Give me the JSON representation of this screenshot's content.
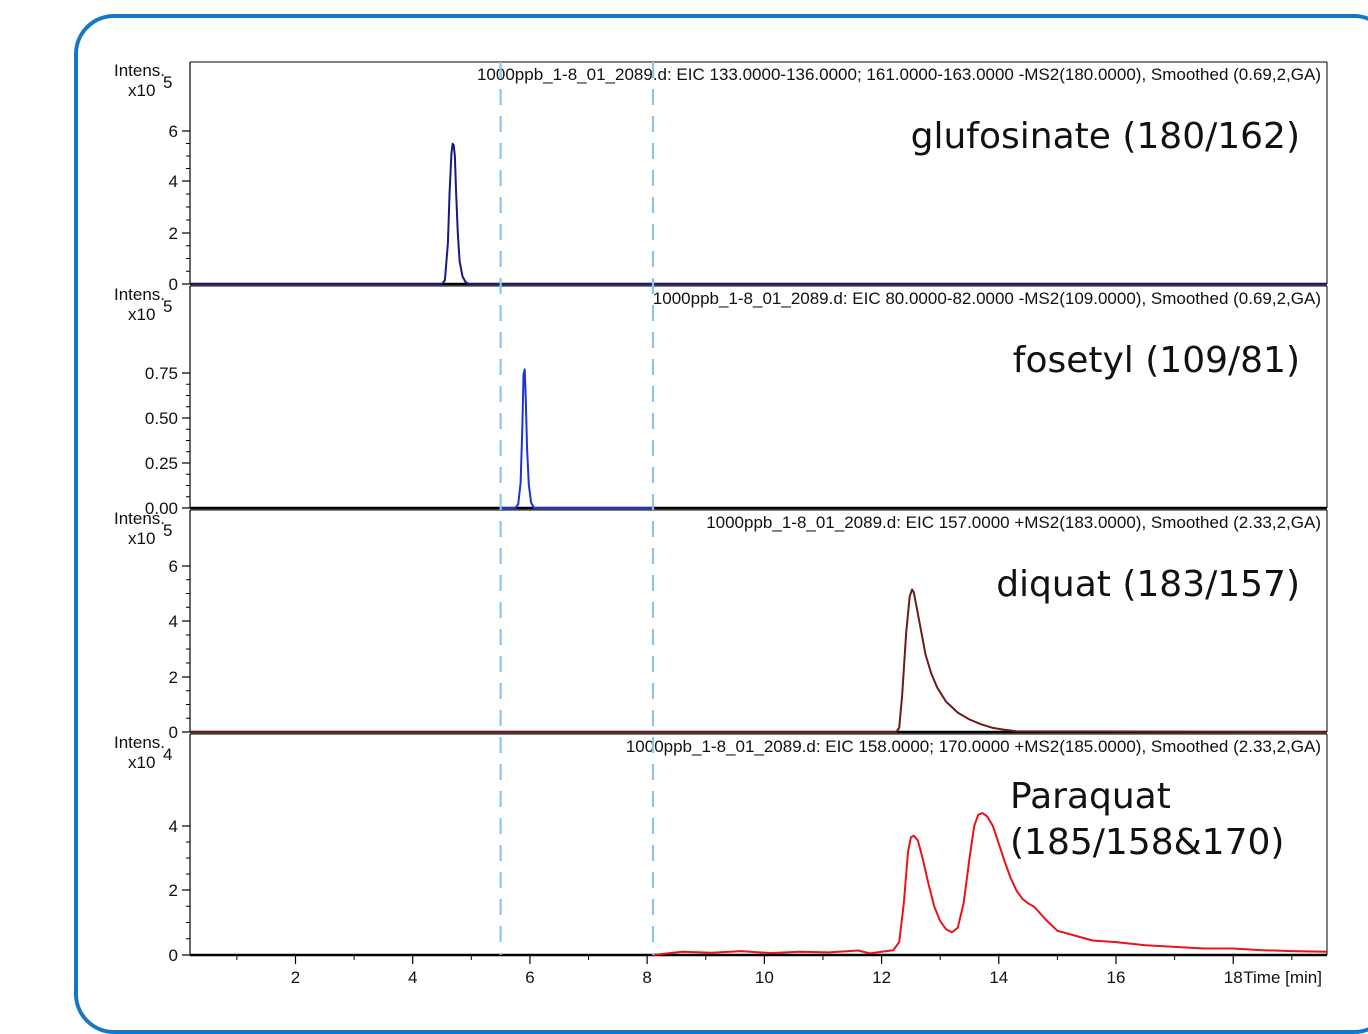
{
  "colors": {
    "frame": "#1677c2",
    "marker": "#8fc3ef",
    "axis": "#000000"
  },
  "x_axis_label": "Time [min]",
  "chart_data": [
    {
      "type": "line",
      "panel": 1,
      "header": "1000ppb_1-8_01_2089.d: EIC 133.0000-136.0000; 161.0000-163.0000 -MS2(180.0000), Smoothed (0.69,2,GA)",
      "compound_label": "glufosinate (180/162)",
      "y_unit_label": "Intens.",
      "y_scale_label": "x10",
      "y_scale_exp": "5",
      "y_ticks": [
        "0",
        "2",
        "4",
        "6"
      ],
      "ylim": [
        0,
        7
      ],
      "xlim": [
        0.2,
        19.6
      ],
      "color": "#1a1a7a",
      "series": [
        {
          "x": [
            0.2,
            4.5,
            4.55,
            4.6,
            4.63,
            4.66,
            4.68,
            4.7,
            4.72,
            4.74,
            4.77,
            4.8,
            4.85,
            4.9,
            4.95,
            19.6
          ],
          "y": [
            0,
            0,
            0.15,
            1.6,
            3.6,
            5.1,
            5.5,
            5.45,
            5.0,
            3.6,
            2.0,
            0.9,
            0.3,
            0.08,
            0,
            0
          ]
        }
      ]
    },
    {
      "type": "line",
      "panel": 2,
      "header": "1000ppb_1-8_01_2089.d: EIC 80.0000-82.0000 -MS2(109.0000), Smoothed (0.69,2,GA)",
      "compound_label": "fosetyl (109/81)",
      "y_unit_label": "Intens.",
      "y_scale_label": "x10",
      "y_scale_exp": "5",
      "y_ticks": [
        "0.00",
        "0.25",
        "0.50",
        "0.75"
      ],
      "ylim": [
        0,
        0.9
      ],
      "xlim": [
        0.2,
        19.6
      ],
      "color": "#1a33dd",
      "series": [
        {
          "x": [
            5.5,
            5.75,
            5.8,
            5.84,
            5.87,
            5.89,
            5.91,
            5.93,
            5.95,
            5.98,
            6.02,
            6.07,
            8.1
          ],
          "y": [
            0,
            0,
            0.02,
            0.14,
            0.44,
            0.74,
            0.77,
            0.6,
            0.34,
            0.13,
            0.03,
            0,
            0
          ]
        }
      ]
    },
    {
      "type": "line",
      "panel": 3,
      "header": "1000ppb_1-8_01_2089.d: EIC 157.0000 +MS2(183.0000), Smoothed (2.33,2,GA)",
      "compound_label": "diquat (183/157)",
      "y_unit_label": "Intens.",
      "y_scale_label": "x10",
      "y_scale_exp": "5",
      "y_ticks": [
        "0",
        "2",
        "4",
        "6"
      ],
      "ylim": [
        0,
        7
      ],
      "xlim": [
        0.2,
        19.6
      ],
      "color": "#6e1a1a",
      "series": [
        {
          "x": [
            0.2,
            12.25,
            12.3,
            12.35,
            12.42,
            12.48,
            12.52,
            12.55,
            12.6,
            12.68,
            12.75,
            12.85,
            12.95,
            13.1,
            13.3,
            13.5,
            13.7,
            13.9,
            14.1,
            14.3,
            19.6
          ],
          "y": [
            0,
            0,
            0.15,
            1.3,
            3.6,
            4.9,
            5.15,
            5.05,
            4.5,
            3.6,
            2.8,
            2.1,
            1.6,
            1.1,
            0.7,
            0.45,
            0.28,
            0.15,
            0.08,
            0.03,
            0
          ]
        }
      ]
    },
    {
      "type": "line",
      "panel": 4,
      "header": "1000ppb_1-8_01_2089.d: EIC 158.0000; 170.0000 +MS2(185.0000), Smoothed (2.33,2,GA)",
      "compound_label_lines": [
        "Paraquat",
        "(185/158&170)"
      ],
      "y_unit_label": "Intens.",
      "y_scale_label": "x10",
      "y_scale_exp": "4",
      "y_ticks": [
        "0",
        "2",
        "4"
      ],
      "ylim": [
        0,
        6
      ],
      "xlim": [
        0.2,
        19.6
      ],
      "x_ticks": [
        2,
        4,
        6,
        8,
        10,
        12,
        14,
        16,
        18
      ],
      "color": "#e8141c",
      "series": [
        {
          "x": [
            8.1,
            8.6,
            9.1,
            9.6,
            10.1,
            10.6,
            11.1,
            11.6,
            11.8,
            12.0,
            12.2,
            12.3,
            12.38,
            12.45,
            12.5,
            12.55,
            12.62,
            12.7,
            12.8,
            12.9,
            13.0,
            13.1,
            13.2,
            13.3,
            13.4,
            13.5,
            13.58,
            13.65,
            13.72,
            13.8,
            13.9,
            14.0,
            14.1,
            14.2,
            14.3,
            14.4,
            14.5,
            14.6,
            14.8,
            15.0,
            15.3,
            15.6,
            16.0,
            16.5,
            17.0,
            17.5,
            18.0,
            18.5,
            19.0,
            19.6
          ],
          "y": [
            0,
            0.1,
            0.07,
            0.12,
            0.06,
            0.1,
            0.08,
            0.14,
            0.05,
            0.1,
            0.15,
            0.4,
            1.6,
            3.2,
            3.65,
            3.7,
            3.55,
            3.0,
            2.2,
            1.5,
            1.05,
            0.8,
            0.7,
            0.85,
            1.6,
            3.0,
            4.0,
            4.35,
            4.4,
            4.3,
            4.0,
            3.45,
            2.9,
            2.4,
            2.0,
            1.75,
            1.6,
            1.5,
            1.1,
            0.75,
            0.6,
            0.45,
            0.4,
            0.3,
            0.25,
            0.2,
            0.2,
            0.15,
            0.12,
            0.1
          ]
        }
      ]
    }
  ],
  "markers_x": [
    5.5,
    8.1
  ]
}
